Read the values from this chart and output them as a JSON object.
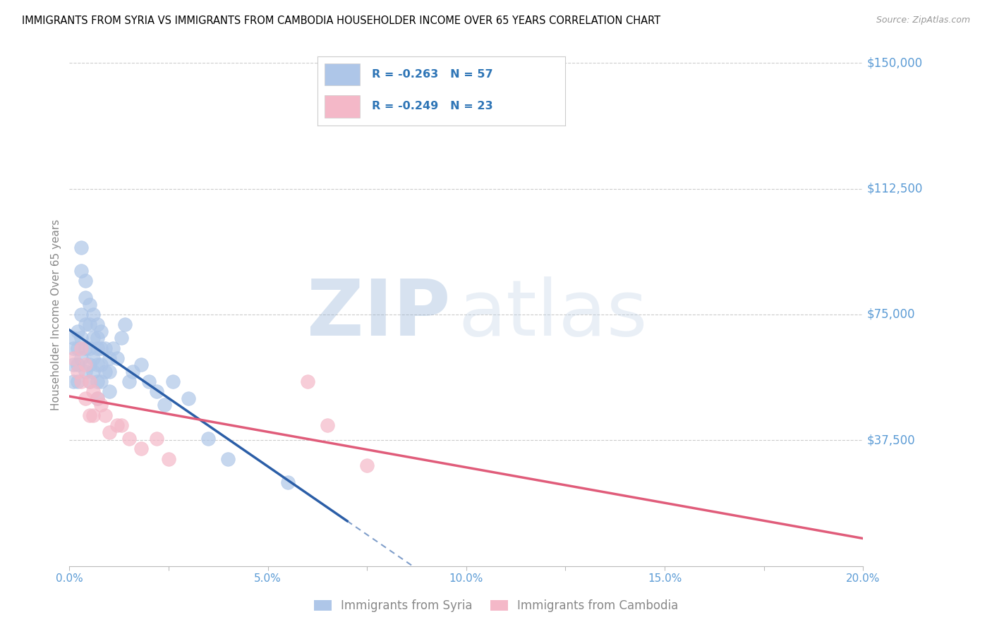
{
  "title": "IMMIGRANTS FROM SYRIA VS IMMIGRANTS FROM CAMBODIA HOUSEHOLDER INCOME OVER 65 YEARS CORRELATION CHART",
  "source": "Source: ZipAtlas.com",
  "ylabel": "Householder Income Over 65 years",
  "xlim": [
    0.0,
    0.2
  ],
  "ylim": [
    0,
    150000
  ],
  "yticks": [
    0,
    37500,
    75000,
    112500,
    150000
  ],
  "ytick_labels": [
    "",
    "$37,500",
    "$75,000",
    "$112,500",
    "$150,000"
  ],
  "xticks": [
    0.0,
    0.025,
    0.05,
    0.075,
    0.1,
    0.125,
    0.15,
    0.175,
    0.2
  ],
  "xtick_labels": [
    "0.0%",
    "",
    "5.0%",
    "",
    "10.0%",
    "",
    "15.0%",
    "",
    "20.0%"
  ],
  "syria_color": "#aec6e8",
  "syria_line_color": "#2b5ea7",
  "cambodia_color": "#f4b8c8",
  "cambodia_line_color": "#e05c7a",
  "syria_R": -0.263,
  "syria_N": 57,
  "cambodia_R": -0.249,
  "cambodia_N": 23,
  "legend_labels": [
    "Immigrants from Syria",
    "Immigrants from Cambodia"
  ],
  "syria_x": [
    0.001,
    0.001,
    0.001,
    0.001,
    0.002,
    0.002,
    0.002,
    0.002,
    0.003,
    0.003,
    0.003,
    0.003,
    0.003,
    0.004,
    0.004,
    0.004,
    0.004,
    0.004,
    0.005,
    0.005,
    0.005,
    0.005,
    0.005,
    0.006,
    0.006,
    0.006,
    0.006,
    0.007,
    0.007,
    0.007,
    0.007,
    0.007,
    0.007,
    0.008,
    0.008,
    0.008,
    0.008,
    0.009,
    0.009,
    0.01,
    0.01,
    0.01,
    0.011,
    0.012,
    0.013,
    0.014,
    0.015,
    0.016,
    0.018,
    0.02,
    0.022,
    0.024,
    0.026,
    0.03,
    0.035,
    0.04,
    0.055
  ],
  "syria_y": [
    65000,
    68000,
    60000,
    55000,
    70000,
    65000,
    60000,
    55000,
    95000,
    88000,
    75000,
    68000,
    62000,
    85000,
    80000,
    72000,
    65000,
    58000,
    78000,
    72000,
    65000,
    60000,
    55000,
    75000,
    68000,
    62000,
    58000,
    72000,
    68000,
    65000,
    60000,
    55000,
    50000,
    70000,
    65000,
    60000,
    55000,
    65000,
    58000,
    62000,
    58000,
    52000,
    65000,
    62000,
    68000,
    72000,
    55000,
    58000,
    60000,
    55000,
    52000,
    48000,
    55000,
    50000,
    38000,
    32000,
    25000
  ],
  "cambodia_x": [
    0.001,
    0.002,
    0.003,
    0.003,
    0.004,
    0.004,
    0.005,
    0.005,
    0.006,
    0.006,
    0.007,
    0.008,
    0.009,
    0.01,
    0.012,
    0.013,
    0.015,
    0.018,
    0.022,
    0.025,
    0.06,
    0.065,
    0.075
  ],
  "cambodia_y": [
    62000,
    58000,
    65000,
    55000,
    60000,
    50000,
    55000,
    45000,
    52000,
    45000,
    50000,
    48000,
    45000,
    40000,
    42000,
    42000,
    38000,
    35000,
    38000,
    32000,
    55000,
    42000,
    30000
  ],
  "background_color": "#ffffff",
  "grid_color": "#cccccc",
  "title_color": "#000000",
  "tick_label_color": "#5b9bd5",
  "legend_R_color": "#2e75b6",
  "watermark_zip_color": "#d0d8e8",
  "watermark_atlas_color": "#b8c8e0"
}
